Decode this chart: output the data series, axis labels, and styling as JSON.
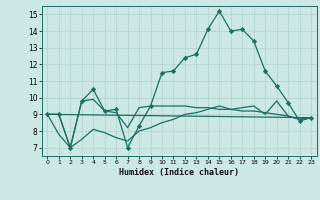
{
  "xlabel": "Humidex (Indice chaleur)",
  "background_color": "#cce8e4",
  "grid_color": "#aed0cc",
  "line_color": "#1a6e64",
  "xlim": [
    -0.5,
    23.5
  ],
  "ylim": [
    6.5,
    15.5
  ],
  "xticks": [
    0,
    1,
    2,
    3,
    4,
    5,
    6,
    7,
    8,
    9,
    10,
    11,
    12,
    13,
    14,
    15,
    16,
    17,
    18,
    19,
    20,
    21,
    22,
    23
  ],
  "yticks": [
    7,
    8,
    9,
    10,
    11,
    12,
    13,
    14,
    15
  ],
  "line1_x": [
    0,
    1,
    2,
    3,
    4,
    5,
    6,
    7,
    8,
    9,
    10,
    11,
    12,
    13,
    14,
    15,
    16,
    17,
    18,
    19,
    20,
    21,
    22,
    23
  ],
  "line1_y": [
    9.0,
    9.0,
    7.0,
    9.8,
    10.5,
    9.2,
    9.3,
    7.0,
    8.3,
    9.5,
    11.5,
    11.6,
    12.4,
    12.6,
    14.1,
    15.2,
    14.0,
    14.1,
    13.4,
    11.6,
    10.7,
    9.7,
    8.6,
    8.8
  ],
  "line2_x": [
    0,
    1,
    2,
    3,
    4,
    5,
    6,
    7,
    8,
    9,
    10,
    11,
    12,
    13,
    14,
    15,
    16,
    17,
    18,
    19,
    20,
    21,
    22,
    23
  ],
  "line2_y": [
    9.0,
    9.0,
    7.0,
    9.8,
    9.9,
    9.2,
    9.1,
    8.2,
    9.4,
    9.5,
    9.5,
    9.5,
    9.5,
    9.4,
    9.4,
    9.3,
    9.3,
    9.2,
    9.2,
    9.1,
    9.0,
    8.9,
    8.7,
    8.8
  ],
  "line3_x": [
    0,
    1,
    2,
    3,
    4,
    5,
    6,
    7,
    8,
    9,
    10,
    11,
    12,
    13,
    14,
    15,
    16,
    17,
    18,
    19,
    20,
    21,
    22,
    23
  ],
  "line3_y": [
    9.0,
    7.8,
    7.0,
    7.5,
    8.1,
    7.9,
    7.6,
    7.4,
    8.0,
    8.2,
    8.5,
    8.7,
    9.0,
    9.1,
    9.3,
    9.5,
    9.3,
    9.4,
    9.5,
    9.0,
    9.8,
    8.9,
    8.7,
    8.8
  ],
  "line4_x": [
    0,
    23
  ],
  "line4_y": [
    9.0,
    8.8
  ]
}
